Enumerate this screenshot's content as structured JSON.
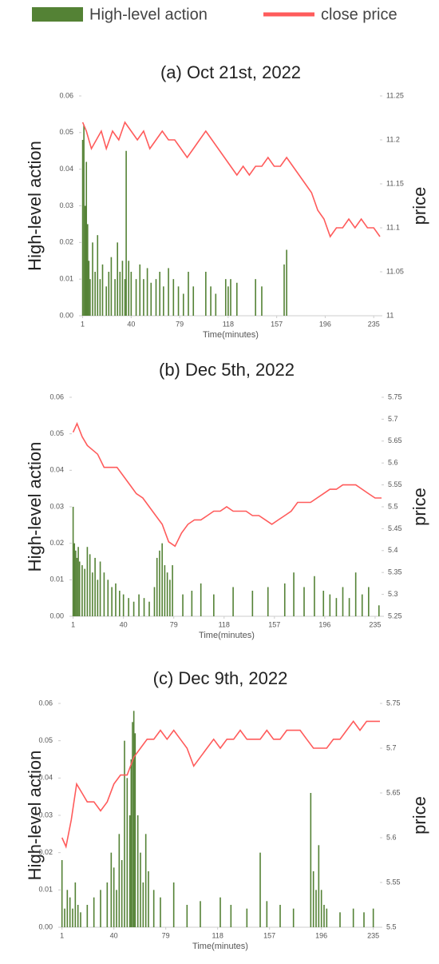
{
  "chart_data": [
    {
      "type": "bar-line",
      "title": "(a) Oct 21st, 2022",
      "x_label": "Time(minutes)",
      "y_label": "High-level action",
      "y2_label": "price",
      "legend": "top",
      "xlim": [
        0,
        240
      ],
      "xticks": [
        1,
        40,
        79,
        118,
        157,
        196,
        235
      ],
      "ylim": [
        0,
        0.06
      ],
      "yticks": [
        {
          "value": 0,
          "label": "0.00"
        },
        0.01,
        0.02,
        0.03,
        0.04,
        0.05,
        0.06
      ],
      "y2lim": [
        11,
        11.25
      ],
      "y2ticks": [
        {
          "value": 11,
          "label": "11"
        },
        11.05,
        11.1,
        11.15,
        11.2,
        11.25
      ],
      "series": [
        {
          "name": "High-level action",
          "type": "bar",
          "color": "#548235",
          "x": [
            1,
            2,
            3,
            4,
            5,
            6,
            7,
            9,
            11,
            13,
            15,
            17,
            20,
            22,
            24,
            27,
            29,
            31,
            33,
            35,
            36,
            38,
            40,
            44,
            47,
            50,
            53,
            56,
            60,
            63,
            66,
            70,
            74,
            78,
            82,
            86,
            90,
            100,
            104,
            108,
            116,
            118,
            120,
            125,
            140,
            145,
            163,
            165
          ],
          "values": [
            0.048,
            0.052,
            0.03,
            0.042,
            0.025,
            0.015,
            0.01,
            0.02,
            0.012,
            0.022,
            0.01,
            0.014,
            0.008,
            0.012,
            0.016,
            0.01,
            0.02,
            0.012,
            0.015,
            0.01,
            0.045,
            0.015,
            0.012,
            0.01,
            0.014,
            0.01,
            0.013,
            0.009,
            0.01,
            0.012,
            0.008,
            0.013,
            0.01,
            0.008,
            0.006,
            0.012,
            0.008,
            0.012,
            0.008,
            0.006,
            0.01,
            0.008,
            0.01,
            0.009,
            0.01,
            0.008,
            0.014,
            0.018
          ]
        },
        {
          "name": "close price",
          "type": "line",
          "axis": "y2",
          "color": "#ff5b5b",
          "x": [
            1,
            4,
            8,
            12,
            16,
            20,
            25,
            30,
            35,
            40,
            45,
            50,
            55,
            60,
            65,
            70,
            75,
            80,
            85,
            90,
            95,
            100,
            105,
            110,
            115,
            120,
            125,
            130,
            135,
            140,
            145,
            150,
            155,
            160,
            165,
            170,
            175,
            180,
            185,
            190,
            195,
            200,
            205,
            210,
            215,
            220,
            225,
            230,
            235,
            240
          ],
          "values": [
            11.22,
            11.21,
            11.19,
            11.2,
            11.21,
            11.19,
            11.21,
            11.2,
            11.22,
            11.21,
            11.2,
            11.21,
            11.19,
            11.2,
            11.21,
            11.2,
            11.2,
            11.19,
            11.18,
            11.19,
            11.2,
            11.21,
            11.2,
            11.19,
            11.18,
            11.17,
            11.16,
            11.17,
            11.16,
            11.17,
            11.17,
            11.18,
            11.17,
            11.17,
            11.18,
            11.17,
            11.16,
            11.15,
            11.14,
            11.12,
            11.11,
            11.09,
            11.1,
            11.1,
            11.11,
            11.1,
            11.11,
            11.1,
            11.1,
            11.09
          ]
        }
      ]
    },
    {
      "type": "bar-line",
      "title": "(b) Dec 5th, 2022",
      "x_label": "Time(minutes)",
      "y_label": "High-level action",
      "y2_label": "price",
      "xlim": [
        0,
        240
      ],
      "xticks": [
        1,
        40,
        79,
        118,
        157,
        196,
        235
      ],
      "ylim": [
        0,
        0.06
      ],
      "yticks": [
        {
          "value": 0,
          "label": "0.00"
        },
        0.01,
        0.02,
        0.03,
        0.04,
        0.05,
        0.06
      ],
      "y2lim": [
        5.25,
        5.75
      ],
      "y2ticks": [
        5.25,
        5.3,
        5.35,
        5.4,
        5.45,
        5.5,
        5.55,
        5.6,
        5.65,
        5.7,
        5.75
      ],
      "series": [
        {
          "name": "High-level action",
          "type": "bar",
          "color": "#548235",
          "x": [
            1,
            2,
            3,
            4,
            5,
            6,
            8,
            10,
            12,
            14,
            16,
            18,
            20,
            22,
            25,
            28,
            31,
            34,
            37,
            40,
            44,
            48,
            52,
            56,
            60,
            64,
            66,
            68,
            70,
            72,
            74,
            76,
            78,
            86,
            93,
            100,
            110,
            125,
            140,
            152,
            165,
            172,
            180,
            188,
            195,
            200,
            205,
            210,
            215,
            220,
            225,
            230,
            238
          ],
          "values": [
            0.03,
            0.02,
            0.018,
            0.016,
            0.019,
            0.015,
            0.014,
            0.013,
            0.019,
            0.017,
            0.012,
            0.016,
            0.01,
            0.015,
            0.012,
            0.01,
            0.008,
            0.009,
            0.007,
            0.006,
            0.005,
            0.004,
            0.006,
            0.005,
            0.004,
            0.008,
            0.016,
            0.018,
            0.02,
            0.014,
            0.012,
            0.01,
            0.014,
            0.006,
            0.007,
            0.009,
            0.006,
            0.008,
            0.007,
            0.008,
            0.009,
            0.012,
            0.008,
            0.011,
            0.007,
            0.006,
            0.005,
            0.008,
            0.005,
            0.012,
            0.006,
            0.008,
            0.003
          ]
        },
        {
          "name": "close price",
          "type": "line",
          "axis": "y2",
          "color": "#ff5b5b",
          "x": [
            1,
            4,
            8,
            12,
            16,
            20,
            25,
            30,
            35,
            40,
            45,
            50,
            55,
            60,
            65,
            70,
            75,
            80,
            85,
            90,
            95,
            100,
            105,
            110,
            115,
            120,
            125,
            130,
            135,
            140,
            145,
            150,
            155,
            160,
            165,
            170,
            175,
            180,
            185,
            190,
            195,
            200,
            205,
            210,
            215,
            220,
            225,
            230,
            235,
            240
          ],
          "values": [
            5.67,
            5.69,
            5.66,
            5.64,
            5.63,
            5.62,
            5.59,
            5.59,
            5.59,
            5.57,
            5.55,
            5.53,
            5.52,
            5.5,
            5.48,
            5.46,
            5.42,
            5.41,
            5.44,
            5.46,
            5.47,
            5.47,
            5.48,
            5.49,
            5.49,
            5.5,
            5.49,
            5.49,
            5.49,
            5.48,
            5.48,
            5.47,
            5.46,
            5.47,
            5.48,
            5.49,
            5.51,
            5.51,
            5.51,
            5.52,
            5.53,
            5.54,
            5.54,
            5.55,
            5.55,
            5.55,
            5.54,
            5.53,
            5.52,
            5.52
          ]
        }
      ]
    },
    {
      "type": "bar-line",
      "title": "(c) Dec 9th, 2022",
      "x_label": "Time(minutes)",
      "y_label": "High-level action",
      "y2_label": "price",
      "xlim": [
        0,
        240
      ],
      "xticks": [
        1,
        40,
        79,
        118,
        157,
        196,
        235
      ],
      "ylim": [
        0,
        0.06
      ],
      "yticks": [
        {
          "value": 0,
          "label": "0.00"
        },
        0.01,
        0.02,
        0.03,
        0.04,
        0.05,
        0.06
      ],
      "y2lim": [
        5.5,
        5.75
      ],
      "y2ticks": [
        5.5,
        5.55,
        5.6,
        5.65,
        5.7,
        5.75
      ],
      "series": [
        {
          "name": "High-level action",
          "type": "bar",
          "color": "#548235",
          "x": [
            1,
            3,
            5,
            7,
            9,
            11,
            13,
            15,
            20,
            25,
            30,
            35,
            38,
            40,
            42,
            44,
            46,
            48,
            50,
            52,
            53,
            54,
            55,
            56,
            58,
            60,
            62,
            64,
            66,
            70,
            75,
            85,
            95,
            105,
            120,
            128,
            140,
            150,
            155,
            165,
            175,
            188,
            190,
            192,
            194,
            196,
            198,
            200,
            210,
            220,
            228,
            235
          ],
          "values": [
            0.018,
            0.005,
            0.01,
            0.008,
            0.005,
            0.012,
            0.006,
            0.004,
            0.006,
            0.008,
            0.01,
            0.012,
            0.02,
            0.016,
            0.01,
            0.025,
            0.018,
            0.05,
            0.04,
            0.03,
            0.045,
            0.055,
            0.058,
            0.052,
            0.03,
            0.02,
            0.012,
            0.025,
            0.015,
            0.01,
            0.008,
            0.012,
            0.006,
            0.007,
            0.008,
            0.006,
            0.005,
            0.02,
            0.007,
            0.006,
            0.005,
            0.036,
            0.015,
            0.01,
            0.022,
            0.01,
            0.006,
            0.005,
            0.004,
            0.005,
            0.004,
            0.005
          ]
        },
        {
          "name": "close price",
          "type": "line",
          "axis": "y2",
          "color": "#ff5b5b",
          "x": [
            1,
            4,
            8,
            12,
            16,
            20,
            25,
            30,
            35,
            40,
            45,
            50,
            55,
            60,
            65,
            70,
            75,
            80,
            85,
            90,
            95,
            100,
            105,
            110,
            115,
            120,
            125,
            130,
            135,
            140,
            145,
            150,
            155,
            160,
            165,
            170,
            175,
            180,
            185,
            190,
            195,
            200,
            205,
            210,
            215,
            220,
            225,
            230,
            235,
            240
          ],
          "values": [
            5.6,
            5.59,
            5.62,
            5.66,
            5.65,
            5.64,
            5.64,
            5.63,
            5.64,
            5.66,
            5.67,
            5.67,
            5.69,
            5.7,
            5.71,
            5.71,
            5.72,
            5.71,
            5.72,
            5.71,
            5.7,
            5.68,
            5.69,
            5.7,
            5.71,
            5.7,
            5.71,
            5.71,
            5.72,
            5.71,
            5.71,
            5.71,
            5.72,
            5.71,
            5.71,
            5.72,
            5.72,
            5.72,
            5.71,
            5.7,
            5.7,
            5.7,
            5.71,
            5.71,
            5.72,
            5.73,
            5.72,
            5.73,
            5.73,
            5.73
          ]
        }
      ]
    }
  ]
}
